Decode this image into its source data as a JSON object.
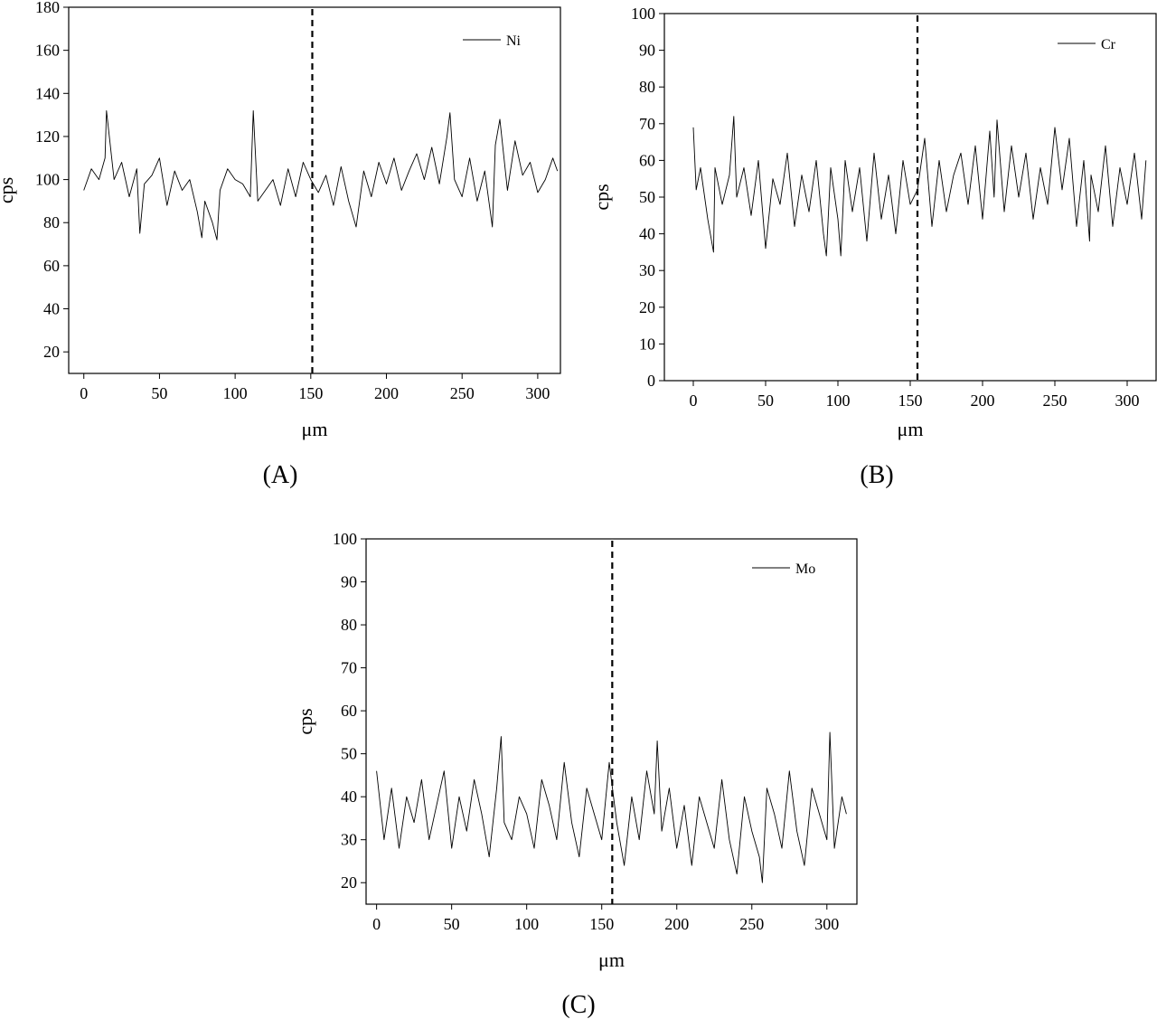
{
  "chart_data": [
    {
      "type": "line",
      "panel_label": "(A)",
      "xlabel": "μm",
      "ylabel": "cps",
      "xlim": [
        -10,
        315
      ],
      "ylim": [
        10,
        180
      ],
      "xticks": [
        0,
        50,
        100,
        150,
        200,
        250,
        300
      ],
      "yticks": [
        20,
        40,
        60,
        80,
        100,
        120,
        140,
        160,
        180
      ],
      "legend_position": "top-right",
      "grid": false,
      "reference_line": {
        "x": 151,
        "style": "dashed"
      },
      "series": [
        {
          "name": "Ni",
          "x": [
            0,
            5,
            10,
            14,
            15,
            20,
            25,
            30,
            35,
            37,
            40,
            45,
            50,
            55,
            60,
            65,
            70,
            75,
            78,
            80,
            85,
            88,
            90,
            95,
            100,
            105,
            110,
            112,
            115,
            120,
            125,
            130,
            135,
            140,
            145,
            150,
            155,
            160,
            165,
            170,
            175,
            180,
            185,
            190,
            195,
            200,
            205,
            210,
            215,
            220,
            225,
            230,
            235,
            240,
            242,
            245,
            250,
            255,
            260,
            265,
            270,
            272,
            275,
            280,
            285,
            290,
            295,
            300,
            305,
            310,
            313
          ],
          "y": [
            95,
            105,
            100,
            110,
            132,
            100,
            108,
            92,
            105,
            75,
            98,
            102,
            110,
            88,
            104,
            95,
            100,
            85,
            73,
            90,
            80,
            72,
            95,
            105,
            100,
            98,
            92,
            132,
            90,
            95,
            100,
            88,
            105,
            92,
            108,
            100,
            94,
            102,
            88,
            106,
            90,
            78,
            104,
            92,
            108,
            98,
            110,
            95,
            104,
            112,
            100,
            115,
            98,
            120,
            131,
            100,
            92,
            110,
            90,
            104,
            78,
            116,
            128,
            95,
            118,
            102,
            108,
            94,
            100,
            110,
            104
          ]
        }
      ]
    },
    {
      "type": "line",
      "panel_label": "(B)",
      "xlabel": "μm",
      "ylabel": "cps",
      "xlim": [
        -20,
        320
      ],
      "ylim": [
        0,
        100
      ],
      "xticks": [
        0,
        50,
        100,
        150,
        200,
        250,
        300
      ],
      "yticks": [
        0,
        10,
        20,
        30,
        40,
        50,
        60,
        70,
        80,
        90,
        100
      ],
      "legend_position": "top-right",
      "grid": false,
      "reference_line": {
        "x": 155,
        "style": "dashed"
      },
      "series": [
        {
          "name": "Cr",
          "x": [
            0,
            2,
            5,
            10,
            14,
            15,
            20,
            25,
            28,
            30,
            35,
            40,
            45,
            50,
            55,
            60,
            65,
            70,
            75,
            80,
            85,
            90,
            92,
            95,
            100,
            102,
            105,
            110,
            115,
            120,
            125,
            130,
            135,
            140,
            145,
            150,
            155,
            160,
            165,
            170,
            175,
            180,
            185,
            190,
            195,
            200,
            205,
            208,
            210,
            215,
            220,
            225,
            230,
            235,
            240,
            245,
            250,
            255,
            260,
            265,
            270,
            274,
            275,
            280,
            285,
            290,
            295,
            300,
            305,
            310,
            313
          ],
          "y": [
            69,
            52,
            58,
            44,
            35,
            58,
            48,
            56,
            72,
            50,
            58,
            45,
            60,
            36,
            55,
            48,
            62,
            42,
            56,
            46,
            60,
            40,
            34,
            58,
            44,
            34,
            60,
            46,
            58,
            38,
            62,
            44,
            56,
            40,
            60,
            48,
            52,
            66,
            42,
            60,
            46,
            56,
            62,
            48,
            64,
            44,
            68,
            50,
            71,
            46,
            64,
            50,
            62,
            44,
            58,
            48,
            69,
            52,
            66,
            42,
            60,
            38,
            56,
            46,
            64,
            42,
            58,
            48,
            62,
            44,
            60
          ]
        }
      ]
    },
    {
      "type": "line",
      "panel_label": "(C)",
      "xlabel": "μm",
      "ylabel": "cps",
      "xlim": [
        -7,
        320
      ],
      "ylim": [
        15,
        100
      ],
      "xticks": [
        0,
        50,
        100,
        150,
        200,
        250,
        300
      ],
      "yticks": [
        20,
        30,
        40,
        50,
        60,
        70,
        80,
        90,
        100
      ],
      "legend_position": "top-right",
      "grid": false,
      "reference_line": {
        "x": 157,
        "style": "dashed"
      },
      "series": [
        {
          "name": "Mo",
          "x": [
            0,
            5,
            10,
            15,
            20,
            25,
            30,
            35,
            40,
            45,
            50,
            55,
            60,
            65,
            70,
            75,
            80,
            83,
            85,
            90,
            95,
            100,
            105,
            110,
            115,
            120,
            125,
            130,
            135,
            140,
            145,
            150,
            155,
            160,
            165,
            170,
            175,
            180,
            185,
            187,
            190,
            195,
            200,
            205,
            210,
            215,
            220,
            225,
            230,
            235,
            240,
            245,
            250,
            255,
            257,
            260,
            265,
            270,
            275,
            280,
            285,
            290,
            295,
            300,
            302,
            305,
            310,
            313
          ],
          "y": [
            46,
            30,
            42,
            28,
            40,
            34,
            44,
            30,
            38,
            46,
            28,
            40,
            32,
            44,
            36,
            26,
            42,
            54,
            34,
            30,
            40,
            36,
            28,
            44,
            38,
            30,
            48,
            34,
            26,
            42,
            36,
            30,
            48,
            34,
            24,
            40,
            30,
            46,
            36,
            53,
            32,
            42,
            28,
            38,
            24,
            40,
            34,
            28,
            44,
            30,
            22,
            40,
            32,
            26,
            20,
            42,
            36,
            28,
            46,
            32,
            24,
            42,
            36,
            30,
            55,
            28,
            40,
            36
          ]
        }
      ]
    }
  ]
}
